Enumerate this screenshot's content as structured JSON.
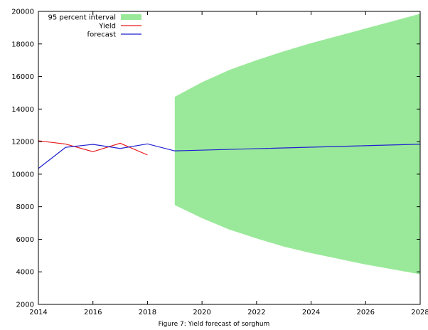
{
  "caption": "Figure 7: Yield forecast of sorghum",
  "chart_data": {
    "type": "line",
    "title": "",
    "xlabel": "",
    "ylabel": "",
    "xlim": [
      2014,
      2028
    ],
    "ylim": [
      2000,
      20000
    ],
    "x_ticks": [
      2014,
      2016,
      2018,
      2020,
      2022,
      2024,
      2026,
      2028
    ],
    "y_ticks": [
      2000,
      4000,
      6000,
      8000,
      10000,
      12000,
      14000,
      16000,
      18000,
      20000
    ],
    "grid": false,
    "legend_position": "top-left",
    "series": [
      {
        "name": "95 percent interval",
        "kind": "area",
        "color": "#9ae99a",
        "x": [
          2019,
          2020,
          2021,
          2022,
          2023,
          2024,
          2025,
          2026,
          2027,
          2028
        ],
        "upper": [
          14750,
          15650,
          16400,
          17000,
          17550,
          18050,
          18500,
          18950,
          19400,
          19850
        ],
        "lower": [
          8100,
          7300,
          6600,
          6050,
          5550,
          5150,
          4800,
          4450,
          4150,
          3850
        ]
      },
      {
        "name": "Yield",
        "kind": "line",
        "color": "#e8191c",
        "x": [
          2014,
          2015,
          2016,
          2017,
          2018
        ],
        "y": [
          12050,
          11850,
          11380,
          11900,
          11180
        ]
      },
      {
        "name": "forecast",
        "kind": "line",
        "color": "#1f1fd1",
        "x": [
          2014,
          2015,
          2016,
          2017,
          2018,
          2019,
          2028
        ],
        "y": [
          10350,
          11650,
          11830,
          11580,
          11860,
          11430,
          11840
        ]
      }
    ]
  }
}
